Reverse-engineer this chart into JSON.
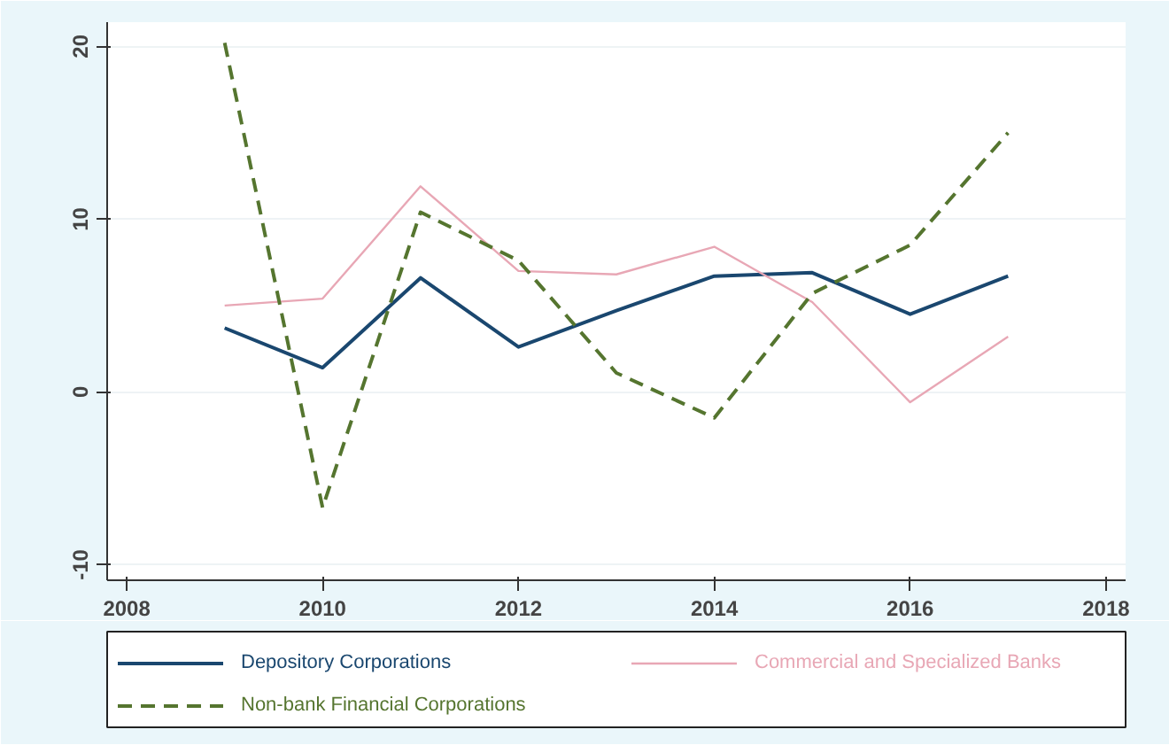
{
  "chart_data": {
    "type": "line",
    "x": [
      2009,
      2010,
      2011,
      2012,
      2013,
      2014,
      2015,
      2016,
      2017
    ],
    "series": [
      {
        "name": "Depository Corporations",
        "color": "#1a476f",
        "line_style": "solid",
        "values": [
          3.7,
          1.4,
          6.6,
          2.6,
          4.7,
          6.7,
          6.9,
          4.5,
          6.7
        ]
      },
      {
        "name": "Commercial and Specialized Banks",
        "color": "#e8a7b5",
        "line_style": "solid",
        "values": [
          5.0,
          5.4,
          11.9,
          7.0,
          6.8,
          8.4,
          5.2,
          -0.6,
          3.2
        ]
      },
      {
        "name": "Non-bank Financial Corporations",
        "color": "#55752f",
        "line_style": "dashed",
        "values": [
          20.2,
          -6.7,
          10.4,
          7.6,
          1.1,
          -1.5,
          5.7,
          8.5,
          15.0
        ]
      }
    ],
    "xlim": [
      2007.8,
      2018.2
    ],
    "xticks": [
      2008,
      2010,
      2012,
      2014,
      2016,
      2018
    ],
    "ylim": [
      -10.9,
      21.4
    ],
    "yticks": [
      -10,
      0,
      10,
      20
    ],
    "grid": "y",
    "legend": "bottom",
    "marker": "none"
  }
}
